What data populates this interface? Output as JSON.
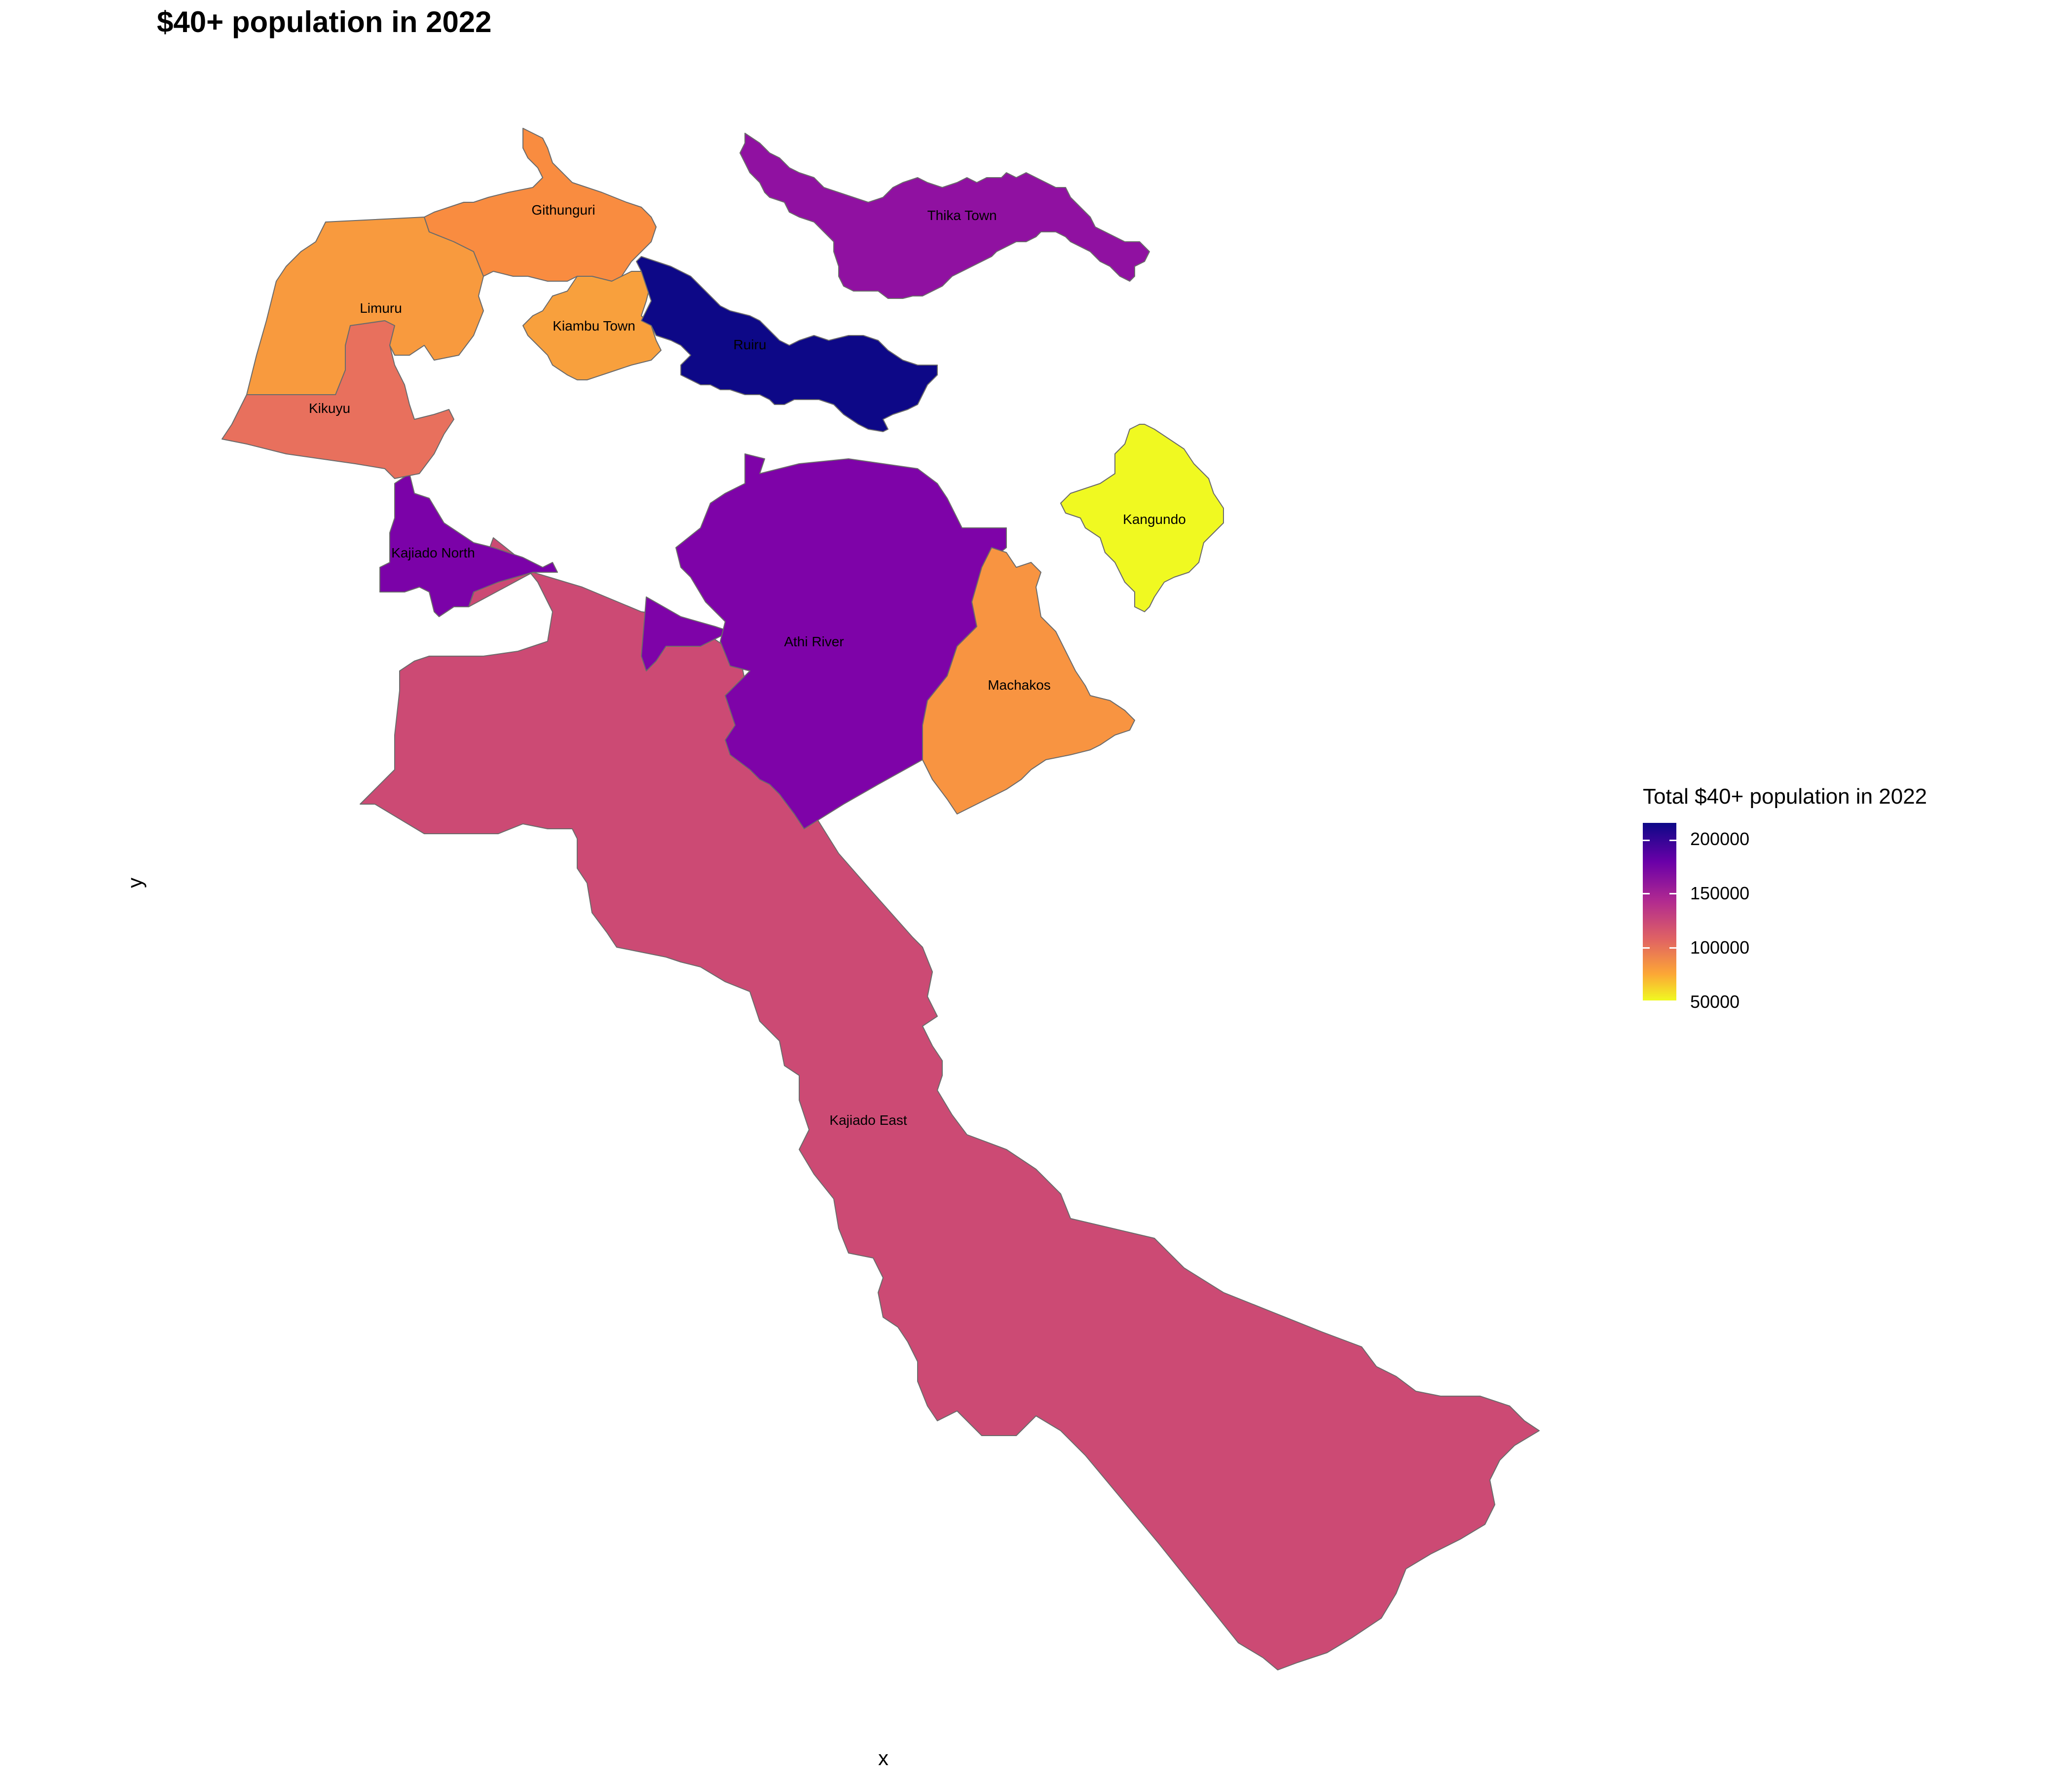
{
  "title": "$40+ population in 2022",
  "x_label": "x",
  "y_label": "y",
  "legend": {
    "title": "Total $40+ population in 2022",
    "ticks": [
      "200000",
      "150000",
      "100000",
      "50000"
    ],
    "colors": [
      "#0d0887",
      "#6a00a8",
      "#b12a90",
      "#e16462",
      "#fca636",
      "#f0f921"
    ]
  },
  "regions": [
    {
      "name": "Githunguri",
      "color": "#f98c40",
      "value": 95000
    },
    {
      "name": "Limuru",
      "color": "#f89a3e",
      "value": 90000
    },
    {
      "name": "Kiambu Town",
      "color": "#f8a03d",
      "value": 88000
    },
    {
      "name": "Ruiru",
      "color": "#0d0887",
      "value": 213000
    },
    {
      "name": "Thika Town",
      "color": "#9011a1",
      "value": 165000
    },
    {
      "name": "Kikuyu",
      "color": "#e8705d",
      "value": 110000
    },
    {
      "name": "Kajiado North",
      "color": "#7b02a8",
      "value": 172000
    },
    {
      "name": "Athi River",
      "color": "#7e03a8",
      "value": 171000
    },
    {
      "name": "Kangundo",
      "color": "#f0f921",
      "value": 50000
    },
    {
      "name": "Machakos",
      "color": "#f89441",
      "value": 92000
    },
    {
      "name": "Kajiado East",
      "color": "#cc4a74",
      "value": 135000
    }
  ]
}
